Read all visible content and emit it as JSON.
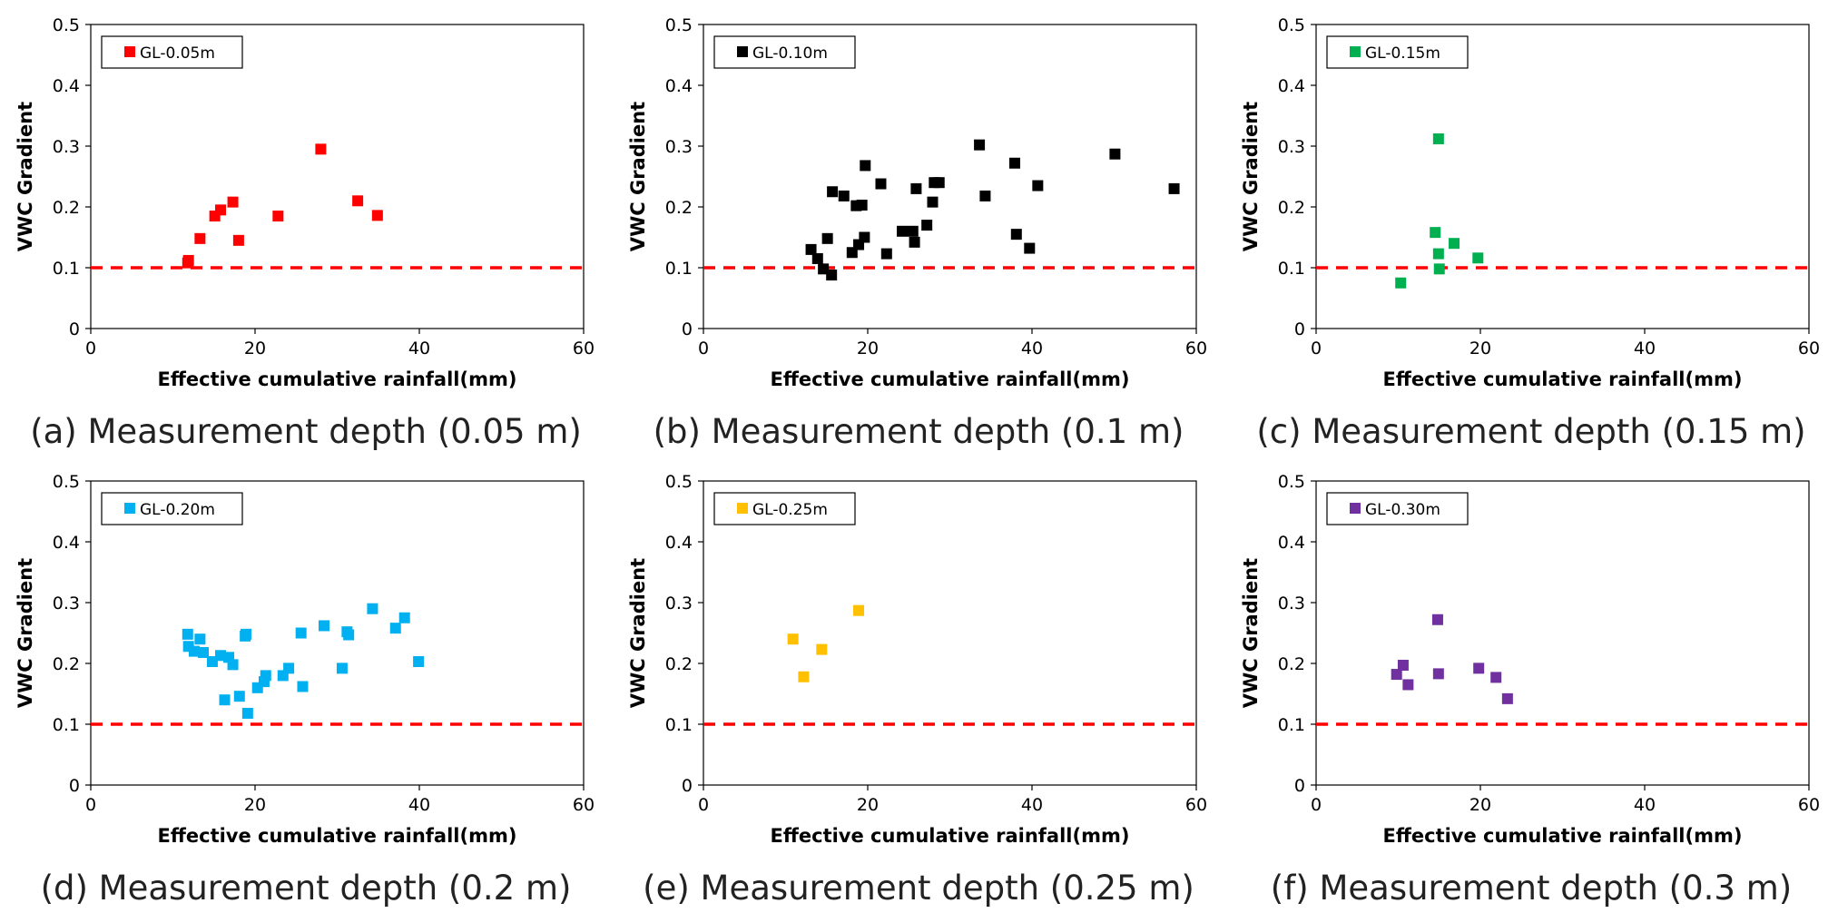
{
  "figure_caption_style": "six scatter panels",
  "threshold_color": "#ff0000",
  "chart_data": [
    {
      "type": "scatter",
      "legend": "GL-0.05m",
      "color": "#ff0000",
      "caption": "(a) Measurement depth (0.05 m)",
      "xlabel": "Effective cumulative rainfall(mm)",
      "ylabel": "VWC Gradient",
      "xlim": [
        0,
        60
      ],
      "ylim": [
        0,
        0.5
      ],
      "xticks": [
        "0",
        "20",
        "40",
        "60"
      ],
      "yticks": [
        "0",
        "0.1",
        "0.2",
        "0.3",
        "0.4",
        "0.5"
      ],
      "threshold": 0.1,
      "x": [
        11.8,
        11.9,
        13.3,
        15.1,
        15.8,
        17.3,
        18.0,
        22.8,
        28.0,
        32.5,
        34.9
      ],
      "y": [
        0.108,
        0.112,
        0.148,
        0.185,
        0.195,
        0.208,
        0.145,
        0.185,
        0.295,
        0.21,
        0.186
      ]
    },
    {
      "type": "scatter",
      "legend": "GL-0.10m",
      "color": "#000000",
      "caption": "(b) Measurement depth (0.1 m)",
      "xlabel": "Effective cumulative rainfall(mm)",
      "ylabel": "VWC Gradient",
      "xlim": [
        0,
        60
      ],
      "ylim": [
        0,
        0.5
      ],
      "xticks": [
        "0",
        "20",
        "40",
        "60"
      ],
      "yticks": [
        "0",
        "0.1",
        "0.2",
        "0.3",
        "0.4",
        "0.5"
      ],
      "threshold": 0.1,
      "x": [
        13.1,
        13.9,
        14.6,
        15.1,
        15.6,
        15.7,
        17.1,
        18.1,
        18.6,
        18.9,
        19.3,
        19.6,
        19.7,
        21.6,
        22.3,
        24.2,
        25.5,
        25.7,
        25.9,
        27.2,
        27.9,
        28.1,
        28.7,
        33.6,
        34.3,
        37.9,
        38.1,
        39.7,
        40.7,
        50.1,
        57.3
      ],
      "y": [
        0.13,
        0.115,
        0.098,
        0.148,
        0.088,
        0.225,
        0.218,
        0.125,
        0.202,
        0.138,
        0.203,
        0.15,
        0.268,
        0.238,
        0.123,
        0.16,
        0.16,
        0.142,
        0.23,
        0.17,
        0.208,
        0.24,
        0.24,
        0.302,
        0.218,
        0.272,
        0.155,
        0.132,
        0.235,
        0.287,
        0.23
      ]
    },
    {
      "type": "scatter",
      "legend": "GL-0.15m",
      "color": "#00b050",
      "caption": "(c) Measurement depth (0.15 m)",
      "xlabel": "Effective cumulative rainfall(mm)",
      "ylabel": "VWC Gradient",
      "xlim": [
        0,
        60
      ],
      "ylim": [
        0,
        0.5
      ],
      "xticks": [
        "0",
        "20",
        "40",
        "60"
      ],
      "yticks": [
        "0",
        "0.1",
        "0.2",
        "0.3",
        "0.4",
        "0.5"
      ],
      "threshold": 0.1,
      "x": [
        10.3,
        14.5,
        14.9,
        14.9,
        15.0,
        16.8,
        19.7
      ],
      "y": [
        0.075,
        0.158,
        0.312,
        0.123,
        0.098,
        0.14,
        0.116
      ]
    },
    {
      "type": "scatter",
      "legend": "GL-0.20m",
      "color": "#00b0f0",
      "caption": "(d) Measurement depth (0.2 m)",
      "xlabel": "Effective cumulative rainfall(mm)",
      "ylabel": "VWC Gradient",
      "xlim": [
        0,
        60
      ],
      "ylim": [
        0,
        0.5
      ],
      "xticks": [
        "0",
        "20",
        "40",
        "60"
      ],
      "yticks": [
        "0",
        "0.1",
        "0.2",
        "0.3",
        "0.4",
        "0.5"
      ],
      "threshold": 0.1,
      "x": [
        11.8,
        11.9,
        12.6,
        13.3,
        13.7,
        14.8,
        15.8,
        16.3,
        16.8,
        17.3,
        18.1,
        18.8,
        18.9,
        19.1,
        20.3,
        21.1,
        21.3,
        23.4,
        24.1,
        25.6,
        25.8,
        28.4,
        30.6,
        31.2,
        31.4,
        34.3,
        37.1,
        38.2,
        39.9
      ],
      "y": [
        0.248,
        0.228,
        0.22,
        0.24,
        0.218,
        0.203,
        0.213,
        0.14,
        0.21,
        0.198,
        0.146,
        0.245,
        0.248,
        0.118,
        0.16,
        0.17,
        0.18,
        0.18,
        0.192,
        0.25,
        0.162,
        0.262,
        0.192,
        0.252,
        0.247,
        0.29,
        0.258,
        0.275,
        0.203
      ]
    },
    {
      "type": "scatter",
      "legend": "GL-0.25m",
      "color": "#ffc000",
      "caption": "(e) Measurement depth (0.25 m)",
      "xlabel": "Effective cumulative rainfall(mm)",
      "ylabel": "VWC Gradient",
      "xlim": [
        0,
        60
      ],
      "ylim": [
        0,
        0.5
      ],
      "xticks": [
        "0",
        "20",
        "40",
        "60"
      ],
      "yticks": [
        "0",
        "0.1",
        "0.2",
        "0.3",
        "0.4",
        "0.5"
      ],
      "threshold": 0.1,
      "x": [
        10.9,
        12.2,
        14.4,
        18.9
      ],
      "y": [
        0.24,
        0.178,
        0.223,
        0.287
      ]
    },
    {
      "type": "scatter",
      "legend": "GL-0.30m",
      "color": "#7030a0",
      "caption": "(f) Measurement depth (0.3 m)",
      "xlabel": "Effective cumulative rainfall(mm)",
      "ylabel": "VWC Gradient",
      "xlim": [
        0,
        60
      ],
      "ylim": [
        0,
        0.5
      ],
      "xticks": [
        "0",
        "20",
        "40",
        "60"
      ],
      "yticks": [
        "0",
        "0.1",
        "0.2",
        "0.3",
        "0.4",
        "0.5"
      ],
      "threshold": 0.1,
      "x": [
        9.8,
        10.6,
        11.2,
        14.8,
        14.9,
        19.8,
        21.9,
        23.3
      ],
      "y": [
        0.182,
        0.197,
        0.165,
        0.272,
        0.183,
        0.192,
        0.177,
        0.142
      ]
    }
  ]
}
